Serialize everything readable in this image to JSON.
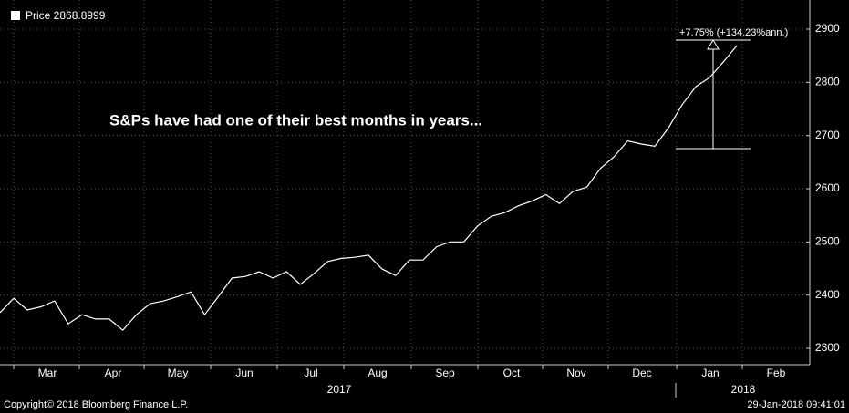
{
  "chart_data": {
    "type": "line",
    "legend_label": "Price 2868.8999",
    "annotation": "S&Ps have had one of their best months in years...",
    "change_label": "+7.75% (+134.23%ann.)",
    "month_labels": [
      "Mar",
      "Apr",
      "May",
      "Jun",
      "Jul",
      "Aug",
      "Sep",
      "Oct",
      "Nov",
      "Dec",
      "Jan",
      "Feb"
    ],
    "year_labels": [
      "2017",
      "2018"
    ],
    "copyright": "Copyright© 2018 Bloomberg Finance L.P.",
    "timestamp": "29-Jan-2018 09:41:01",
    "series": [
      {
        "name": "Price",
        "color": "#ffffff",
        "values": [
          2367,
          2394,
          2372,
          2378,
          2389,
          2346,
          2363,
          2355,
          2355,
          2334,
          2363,
          2384,
          2389,
          2397,
          2406,
          2363,
          2397,
          2432,
          2435,
          2444,
          2432,
          2444,
          2420,
          2440,
          2463,
          2469,
          2471,
          2475,
          2449,
          2437,
          2466,
          2466,
          2491,
          2500,
          2500,
          2530,
          2548,
          2555,
          2568,
          2577,
          2589,
          2572,
          2595,
          2603,
          2638,
          2660,
          2690,
          2684,
          2680,
          2715,
          2758,
          2792,
          2809,
          2838,
          2868.8999
        ]
      }
    ],
    "ylim": [
      2280,
      2920
    ],
    "yticks": [
      2300,
      2400,
      2500,
      2600,
      2700,
      2800,
      2900
    ],
    "grid": true
  }
}
